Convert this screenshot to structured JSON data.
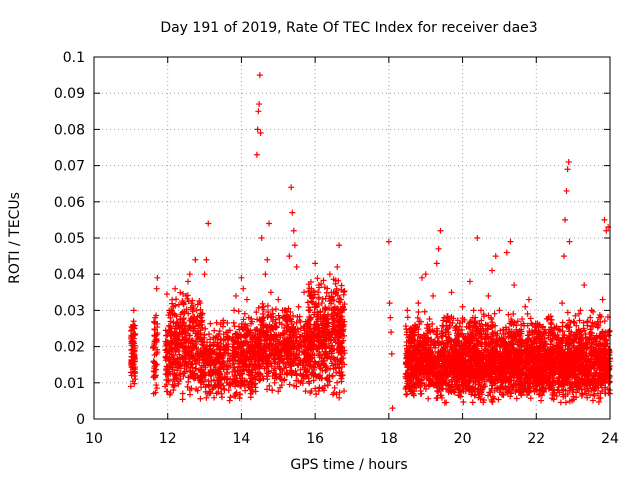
{
  "chart_data": {
    "type": "scatter",
    "title": "Day 191 of 2019, Rate Of TEC Index for receiver dae3",
    "xlabel": "GPS time / hours",
    "ylabel": "ROTI / TECUs",
    "xlim": [
      10,
      24
    ],
    "ylim": [
      0,
      0.1
    ],
    "grid": true,
    "marker": "plus",
    "color": "#ff0000",
    "x_ticks": [
      "10",
      "12",
      "14",
      "16",
      "18",
      "20",
      "22",
      "24"
    ],
    "y_ticks": [
      "0",
      "0.01",
      "0.02",
      "0.03",
      "0.04",
      "0.05",
      "0.06",
      "0.07",
      "0.08",
      "0.09",
      "0.1"
    ],
    "series": [
      {
        "name": "ROTI",
        "points": [
          [
            11.0,
            0.009
          ],
          [
            11.02,
            0.012
          ],
          [
            11.03,
            0.016
          ],
          [
            11.05,
            0.021
          ],
          [
            11.06,
            0.026
          ],
          [
            11.08,
            0.03
          ],
          [
            11.1,
            0.019
          ],
          [
            11.12,
            0.011
          ],
          [
            11.62,
            0.007
          ],
          [
            11.64,
            0.013
          ],
          [
            11.66,
            0.028
          ],
          [
            11.7,
            0.036
          ],
          [
            11.72,
            0.039
          ],
          [
            11.93,
            0.009
          ],
          [
            12.0,
            0.013
          ],
          [
            12.05,
            0.018
          ],
          [
            12.1,
            0.025
          ],
          [
            12.15,
            0.031
          ],
          [
            12.2,
            0.036
          ],
          [
            12.25,
            0.022
          ],
          [
            12.3,
            0.015
          ],
          [
            12.35,
            0.011
          ],
          [
            12.4,
            0.02
          ],
          [
            12.5,
            0.034
          ],
          [
            12.55,
            0.038
          ],
          [
            12.6,
            0.04
          ],
          [
            12.65,
            0.032
          ],
          [
            12.7,
            0.025
          ],
          [
            12.75,
            0.044
          ],
          [
            12.8,
            0.018
          ],
          [
            12.9,
            0.027
          ],
          [
            13.0,
            0.04
          ],
          [
            13.05,
            0.044
          ],
          [
            13.1,
            0.054
          ],
          [
            13.15,
            0.022
          ],
          [
            13.2,
            0.013
          ],
          [
            13.3,
            0.009
          ],
          [
            13.4,
            0.018
          ],
          [
            13.5,
            0.016
          ],
          [
            13.6,
            0.01
          ],
          [
            13.7,
            0.006
          ],
          [
            13.75,
            0.013
          ],
          [
            13.8,
            0.03
          ],
          [
            13.85,
            0.034
          ],
          [
            13.9,
            0.02
          ],
          [
            13.95,
            0.012
          ],
          [
            14.0,
            0.039
          ],
          [
            14.05,
            0.036
          ],
          [
            14.1,
            0.021
          ],
          [
            14.15,
            0.033
          ],
          [
            14.2,
            0.028
          ],
          [
            14.25,
            0.024
          ],
          [
            14.3,
            0.012
          ],
          [
            14.35,
            0.018
          ],
          [
            14.42,
            0.073
          ],
          [
            14.44,
            0.08
          ],
          [
            14.46,
            0.085
          ],
          [
            14.48,
            0.087
          ],
          [
            14.5,
            0.095
          ],
          [
            14.52,
            0.079
          ],
          [
            14.55,
            0.05
          ],
          [
            14.6,
            0.031
          ],
          [
            14.65,
            0.04
          ],
          [
            14.7,
            0.044
          ],
          [
            14.75,
            0.054
          ],
          [
            14.8,
            0.035
          ],
          [
            14.85,
            0.027
          ],
          [
            14.9,
            0.01
          ],
          [
            15.0,
            0.033
          ],
          [
            15.1,
            0.021
          ],
          [
            15.2,
            0.03
          ],
          [
            15.3,
            0.045
          ],
          [
            15.35,
            0.064
          ],
          [
            15.38,
            0.057
          ],
          [
            15.42,
            0.052
          ],
          [
            15.45,
            0.048
          ],
          [
            15.5,
            0.042
          ],
          [
            15.55,
            0.031
          ],
          [
            15.6,
            0.01
          ],
          [
            15.7,
            0.035
          ],
          [
            15.8,
            0.026
          ],
          [
            15.85,
            0.034
          ],
          [
            15.9,
            0.036
          ],
          [
            16.0,
            0.043
          ],
          [
            16.05,
            0.031
          ],
          [
            16.1,
            0.037
          ],
          [
            16.2,
            0.025
          ],
          [
            16.3,
            0.022
          ],
          [
            16.4,
            0.04
          ],
          [
            16.5,
            0.035
          ],
          [
            16.6,
            0.042
          ],
          [
            16.65,
            0.048
          ],
          [
            16.7,
            0.03
          ],
          [
            18.0,
            0.049
          ],
          [
            18.02,
            0.032
          ],
          [
            18.04,
            0.028
          ],
          [
            18.06,
            0.024
          ],
          [
            18.08,
            0.018
          ],
          [
            18.1,
            0.003
          ],
          [
            18.5,
            0.03
          ],
          [
            18.6,
            0.021
          ],
          [
            18.7,
            0.014
          ],
          [
            18.8,
            0.032
          ],
          [
            18.9,
            0.039
          ],
          [
            19.0,
            0.04
          ],
          [
            19.1,
            0.018
          ],
          [
            19.2,
            0.034
          ],
          [
            19.3,
            0.043
          ],
          [
            19.35,
            0.047
          ],
          [
            19.4,
            0.052
          ],
          [
            19.5,
            0.028
          ],
          [
            19.6,
            0.025
          ],
          [
            19.7,
            0.035
          ],
          [
            19.8,
            0.022
          ],
          [
            19.9,
            0.015
          ],
          [
            20.0,
            0.031
          ],
          [
            20.1,
            0.022
          ],
          [
            20.2,
            0.038
          ],
          [
            20.3,
            0.03
          ],
          [
            20.4,
            0.05
          ],
          [
            20.5,
            0.03
          ],
          [
            20.6,
            0.019
          ],
          [
            20.7,
            0.034
          ],
          [
            20.8,
            0.041
          ],
          [
            20.9,
            0.045
          ],
          [
            21.0,
            0.03
          ],
          [
            21.1,
            0.022
          ],
          [
            21.2,
            0.046
          ],
          [
            21.3,
            0.049
          ],
          [
            21.4,
            0.037
          ],
          [
            21.5,
            0.027
          ],
          [
            21.6,
            0.02
          ],
          [
            21.7,
            0.031
          ],
          [
            21.8,
            0.033
          ],
          [
            21.9,
            0.026
          ],
          [
            22.0,
            0.022
          ],
          [
            22.1,
            0.013
          ],
          [
            22.2,
            0.016
          ],
          [
            22.3,
            0.01
          ],
          [
            22.4,
            0.018
          ],
          [
            22.5,
            0.014
          ],
          [
            22.6,
            0.01
          ],
          [
            22.7,
            0.032
          ],
          [
            22.75,
            0.045
          ],
          [
            22.78,
            0.055
          ],
          [
            22.82,
            0.063
          ],
          [
            22.85,
            0.069
          ],
          [
            22.88,
            0.071
          ],
          [
            22.9,
            0.049
          ],
          [
            23.0,
            0.018
          ],
          [
            23.1,
            0.024
          ],
          [
            23.2,
            0.03
          ],
          [
            23.3,
            0.037
          ],
          [
            23.4,
            0.027
          ],
          [
            23.5,
            0.03
          ],
          [
            23.6,
            0.022
          ],
          [
            23.7,
            0.028
          ],
          [
            23.8,
            0.033
          ],
          [
            23.85,
            0.055
          ],
          [
            23.9,
            0.052
          ],
          [
            23.95,
            0.053
          ]
        ],
        "bands": [
          {
            "x": [
              11.0,
              11.12
            ],
            "y": [
              0.008,
              0.03
            ],
            "n": 70
          },
          {
            "x": [
              11.6,
              11.72
            ],
            "y": [
              0.006,
              0.03
            ],
            "n": 50
          },
          {
            "x": [
              11.93,
              12.95
            ],
            "y": [
              0.004,
              0.036
            ],
            "n": 420
          },
          {
            "x": [
              12.95,
              13.7
            ],
            "y": [
              0.004,
              0.028
            ],
            "n": 260
          },
          {
            "x": [
              13.75,
              14.4
            ],
            "y": [
              0.005,
              0.03
            ],
            "n": 280
          },
          {
            "x": [
              14.4,
              15.8
            ],
            "y": [
              0.007,
              0.032
            ],
            "n": 560
          },
          {
            "x": [
              15.8,
              16.8
            ],
            "y": [
              0.005,
              0.04
            ],
            "n": 520
          },
          {
            "x": [
              18.45,
              24.0
            ],
            "y": [
              0.004,
              0.03
            ],
            "n": 2600
          },
          {
            "x": [
              18.45,
              24.0
            ],
            "y": [
              0.006,
              0.02
            ],
            "n": 900
          }
        ]
      }
    ]
  }
}
